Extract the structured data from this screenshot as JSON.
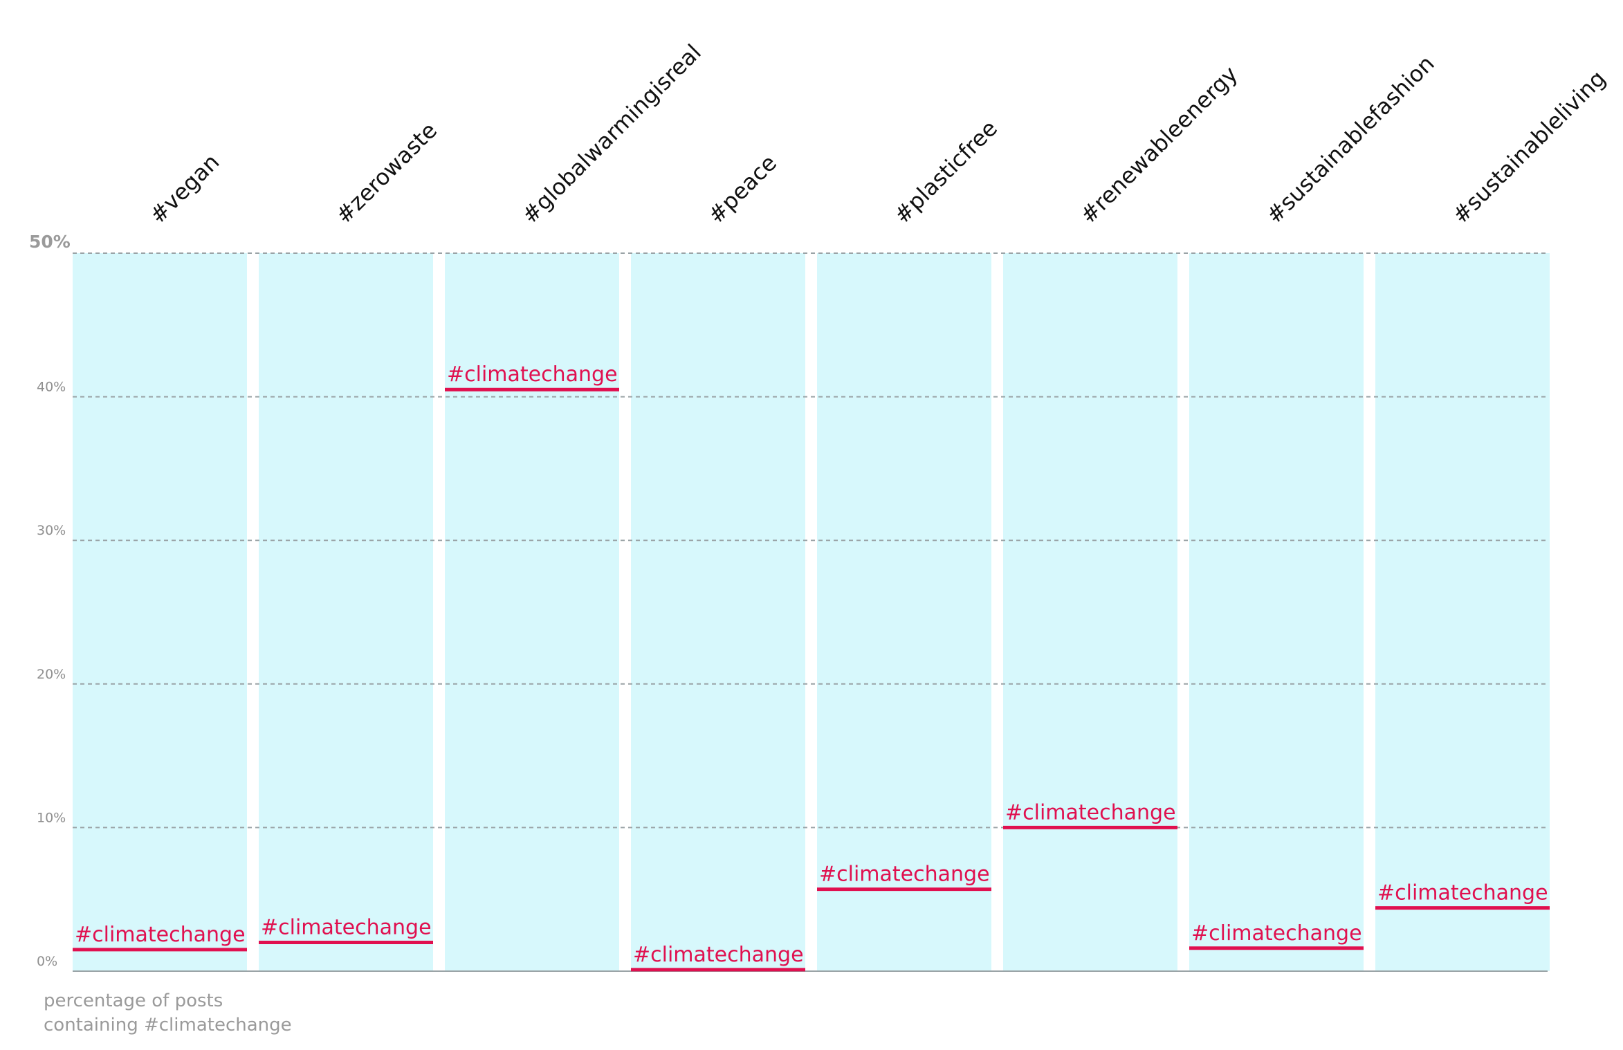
{
  "chart_data": {
    "type": "bar",
    "categories": [
      "#vegan",
      "#zerowaste",
      "#globalwarmingisreal",
      "#peace",
      "#plasticfree",
      "#renewableenergy",
      "#sustainablefashion",
      "#sustainableliving"
    ],
    "series": [
      {
        "name": "#climatechange",
        "values": [
          1.5,
          2.0,
          40.5,
          0.1,
          5.7,
          10.0,
          1.6,
          4.4
        ]
      }
    ],
    "ylim": [
      0,
      50
    ],
    "yticks": [
      0,
      10,
      20,
      30,
      40,
      50
    ],
    "ytick_labels": [
      "0%",
      "10%",
      "20%",
      "30%",
      "40%",
      "50%"
    ],
    "ylabel_line1": "percentage of posts",
    "ylabel_line2": "containing #climatechange",
    "grid": true,
    "colors": {
      "column_background": "#d7f8fc",
      "marker": "#e0104f",
      "grid": "#9aa3a6",
      "category_text": "#111111",
      "axis_text": "#9a9a9a"
    }
  }
}
